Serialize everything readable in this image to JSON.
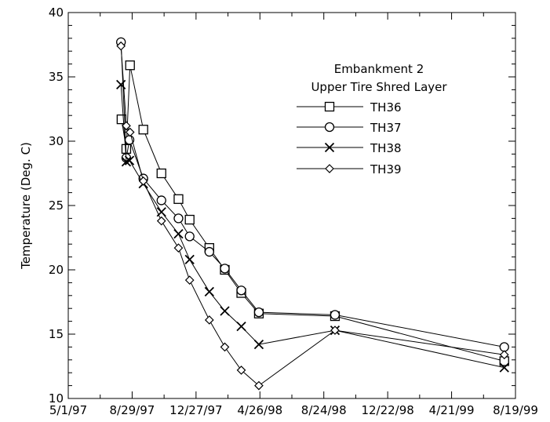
{
  "chart_data": {
    "type": "line",
    "title": "",
    "xlabel": "",
    "ylabel": "Temperature (Deg. C)",
    "x_type": "date",
    "xlim": [
      "1997-05-01",
      "1999-08-19"
    ],
    "ylim": [
      10,
      40
    ],
    "x_ticks": [
      {
        "date": "1997-05-01",
        "label": "5/1/97"
      },
      {
        "date": "1997-08-29",
        "label": "8/29/97"
      },
      {
        "date": "1997-12-27",
        "label": "12/27/97"
      },
      {
        "date": "1998-04-26",
        "label": "4/26/98"
      },
      {
        "date": "1998-08-24",
        "label": "8/24/98"
      },
      {
        "date": "1998-12-22",
        "label": "12/22/98"
      },
      {
        "date": "1999-04-21",
        "label": "4/21/99"
      },
      {
        "date": "1999-08-19",
        "label": "8/19/99"
      }
    ],
    "y_ticks": [
      10,
      15,
      20,
      25,
      30,
      35,
      40
    ],
    "grid": false,
    "legend_title": [
      "Embankment 2",
      "Upper Tire Shred Layer"
    ],
    "legend_position": "top-right",
    "series": [
      {
        "name": "TH36",
        "marker": "square",
        "points": [
          [
            "1997-08-09",
            31.7
          ],
          [
            "1997-08-18",
            29.4
          ],
          [
            "1997-08-25",
            35.9
          ],
          [
            "1997-09-19",
            30.9
          ],
          [
            "1997-10-23",
            27.5
          ],
          [
            "1997-11-24",
            25.5
          ],
          [
            "1997-12-15",
            23.9
          ],
          [
            "1998-01-21",
            21.7
          ],
          [
            "1998-02-19",
            20.0
          ],
          [
            "1998-03-22",
            18.2
          ],
          [
            "1998-04-24",
            16.6
          ],
          [
            "1998-09-14",
            16.4
          ],
          [
            "1999-07-29",
            12.9
          ]
        ]
      },
      {
        "name": "TH37",
        "marker": "circle",
        "points": [
          [
            "1997-08-08",
            37.7
          ],
          [
            "1997-08-18",
            28.7
          ],
          [
            "1997-08-24",
            30.1
          ],
          [
            "1997-09-19",
            27.1
          ],
          [
            "1997-10-23",
            25.4
          ],
          [
            "1997-11-24",
            24.0
          ],
          [
            "1997-12-15",
            22.6
          ],
          [
            "1998-01-21",
            21.4
          ],
          [
            "1998-02-19",
            20.1
          ],
          [
            "1998-03-22",
            18.4
          ],
          [
            "1998-04-24",
            16.7
          ],
          [
            "1998-09-14",
            16.5
          ],
          [
            "1999-07-29",
            14.0
          ]
        ]
      },
      {
        "name": "TH38",
        "marker": "x",
        "points": [
          [
            "1997-08-08",
            34.4
          ],
          [
            "1997-08-18",
            28.4
          ],
          [
            "1997-08-24",
            28.5
          ],
          [
            "1997-09-19",
            26.7
          ],
          [
            "1997-10-23",
            24.5
          ],
          [
            "1997-11-24",
            22.8
          ],
          [
            "1997-12-15",
            20.8
          ],
          [
            "1998-01-21",
            18.3
          ],
          [
            "1998-02-19",
            16.8
          ],
          [
            "1998-03-22",
            15.6
          ],
          [
            "1998-04-24",
            14.2
          ],
          [
            "1998-09-14",
            15.3
          ],
          [
            "1999-07-29",
            12.4
          ]
        ]
      },
      {
        "name": "TH39",
        "marker": "diamond",
        "points": [
          [
            "1997-08-08",
            37.4
          ],
          [
            "1997-08-18",
            31.2
          ],
          [
            "1997-08-25",
            30.7
          ],
          [
            "1997-09-19",
            26.9
          ],
          [
            "1997-10-23",
            23.8
          ],
          [
            "1997-11-24",
            21.7
          ],
          [
            "1997-12-15",
            19.2
          ],
          [
            "1998-01-21",
            16.1
          ],
          [
            "1998-02-19",
            14.0
          ],
          [
            "1998-03-22",
            12.2
          ],
          [
            "1998-04-24",
            11.0
          ],
          [
            "1998-09-14",
            15.3
          ],
          [
            "1999-07-29",
            13.4
          ]
        ]
      }
    ]
  }
}
